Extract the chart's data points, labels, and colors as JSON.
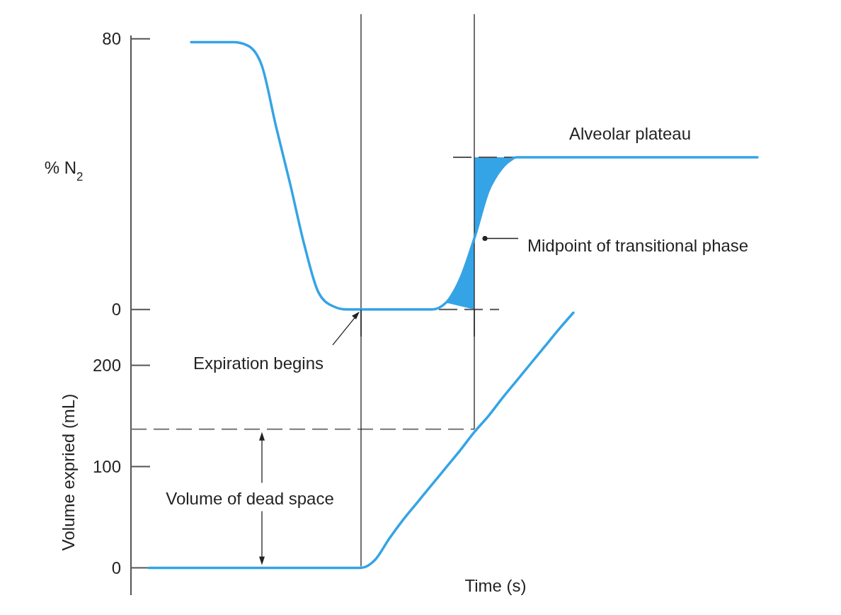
{
  "chart_data": [
    {
      "type": "line",
      "ylabel": "% N$_{2}$",
      "categories": [
        null,
        null,
        null,
        null,
        null,
        null,
        null,
        null,
        null,
        null,
        null,
        null,
        null,
        null,
        null,
        null,
        null,
        null,
        null,
        null,
        null,
        null,
        null,
        null,
        null,
        null,
        null,
        null,
        null,
        null,
        null,
        null,
        null,
        null,
        null,
        null,
        null,
        null,
        null,
        null,
        null,
        null,
        null,
        null,
        null
      ],
      "series": [
        {
          "color": "#35a4e6",
          "values": [
            null,
            null,
            null,
            null,
            79,
            79,
            79,
            79,
            78,
            72,
            54,
            37,
            19,
            5,
            1,
            0,
            0,
            0,
            0,
            0,
            0,
            0,
            2,
            9,
            21,
            35,
            42,
            45,
            45,
            45,
            45,
            45,
            45,
            45,
            45,
            45,
            45,
            45,
            45,
            45,
            45,
            45,
            45,
            45,
            45
          ]
        }
      ],
      "ylim": [
        -8,
        81
      ],
      "yticks": [
        0,
        80
      ],
      "tick_labels": "y",
      "line_style": "solid",
      "ref_lines": [
        {
          "axis": "y",
          "value": 45,
          "color": "#555555",
          "line_style": "dashed"
        },
        {
          "axis": "y",
          "value": 0,
          "color": "#555555",
          "line_style": "dashed"
        }
      ],
      "annotations": [
        "Alveolar plateau",
        "Midpoint of transitional phase",
        "Expiration begins"
      ]
    },
    {
      "type": "line",
      "xlabel": "Time (s)",
      "ylabel": "Volume expried (mL)",
      "categories": [
        null,
        null,
        null,
        null,
        null,
        null,
        null,
        null,
        null,
        null,
        null,
        null,
        null,
        null,
        null,
        null,
        null,
        null,
        null,
        null,
        null,
        null,
        null,
        null,
        null,
        null,
        null,
        null,
        null,
        null,
        null,
        null,
        null,
        null,
        null,
        null,
        null,
        null,
        null,
        null,
        null,
        null,
        null,
        null,
        null
      ],
      "series": [
        {
          "color": "#35a4e6",
          "values": [
            null,
            0,
            0,
            0,
            0,
            0,
            0,
            0,
            0,
            0,
            0,
            0,
            0,
            0,
            0,
            0,
            0,
            8,
            29,
            48,
            65,
            82,
            99,
            116,
            134,
            150,
            168,
            185,
            202,
            219,
            236,
            252,
            null,
            null,
            null,
            null,
            null,
            null,
            null,
            null,
            null,
            null,
            null,
            null,
            null
          ]
        }
      ],
      "ylim": [
        -27,
        255
      ],
      "yticks": [
        0,
        100,
        200
      ],
      "tick_labels": "y",
      "line_style": "solid",
      "ref_lines": [
        {
          "axis": "y",
          "value": 137,
          "color": "#777777",
          "line_style": "dashed"
        }
      ],
      "annotations": [
        "Volume of dead space"
      ]
    }
  ]
}
